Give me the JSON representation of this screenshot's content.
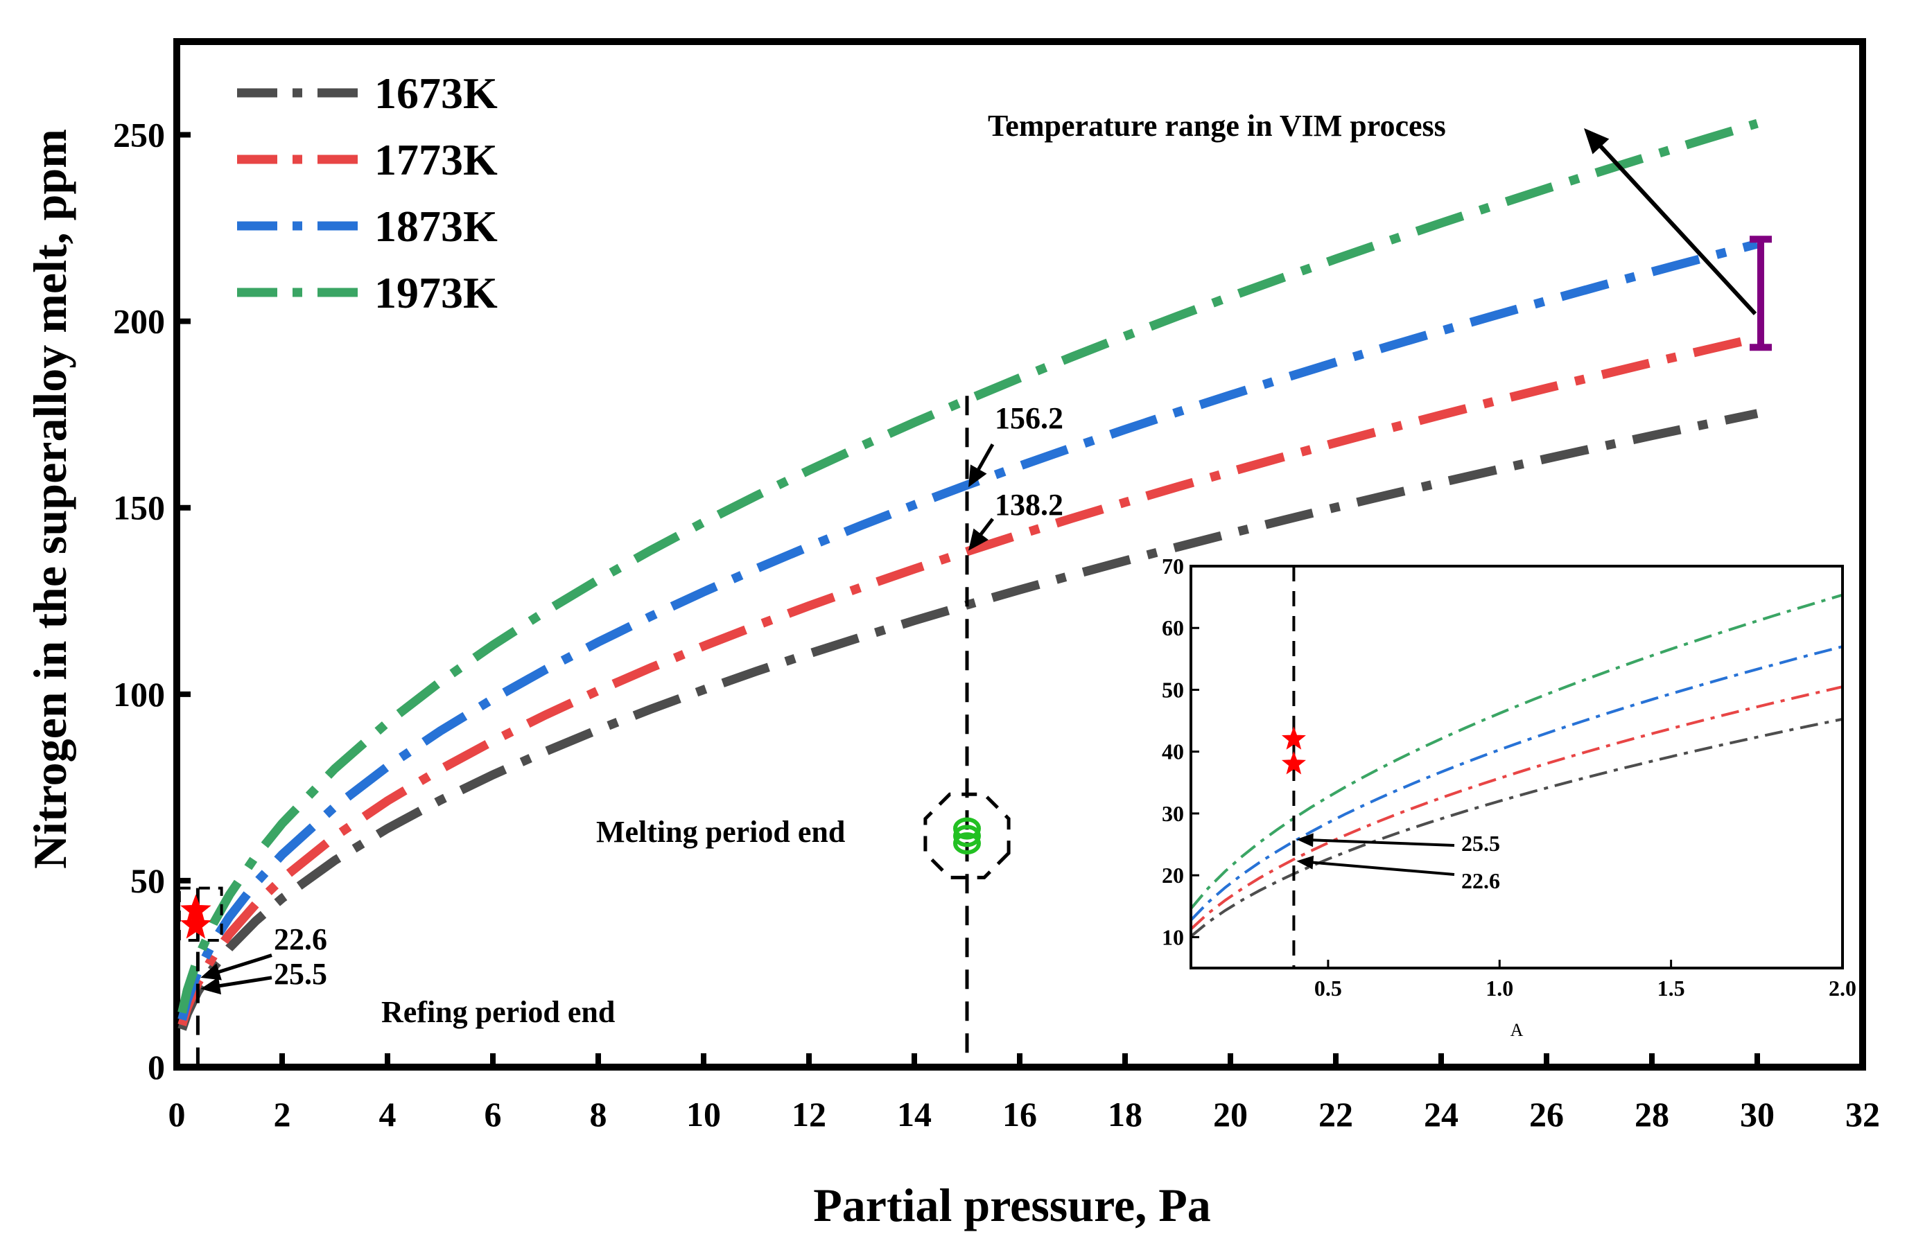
{
  "chart_data": {
    "type": "line",
    "xlabel": "Partial pressure, Pa",
    "ylabel": "Nitrogen in the superalloy melt, ppm",
    "xlim": [
      0,
      32
    ],
    "ylim": [
      0,
      275
    ],
    "x_ticks": [
      "0",
      "2",
      "4",
      "6",
      "8",
      "10",
      "12",
      "14",
      "16",
      "18",
      "20",
      "22",
      "24",
      "26",
      "28",
      "30",
      "32"
    ],
    "y_ticks": [
      "0",
      "50",
      "100",
      "150",
      "200",
      "250"
    ],
    "legend_position": "top-left",
    "series": [
      {
        "name": "1673K",
        "color": "#4d4d4d",
        "k": 32.0
      },
      {
        "name": "1773K",
        "color": "#e84545",
        "k": 35.7
      },
      {
        "name": "1873K",
        "color": "#2772d6",
        "k": 40.3
      },
      {
        "name": "1973K",
        "color": "#3aa564",
        "k": 46.2
      }
    ],
    "series_x": [
      0.1,
      0.2,
      0.4,
      0.7,
      1,
      1.5,
      2,
      3,
      4,
      5,
      6,
      7,
      8,
      9,
      10,
      11,
      12,
      13,
      14,
      15,
      16,
      17,
      18,
      19,
      20,
      21,
      22,
      23,
      24,
      25,
      26,
      27,
      28,
      29,
      30
    ],
    "reference_x": 15,
    "refining_x": 0.4,
    "annotations": {
      "vim_range": "Temperature range in VIM process",
      "melting_end": "Melting period end",
      "refining_end": "Refing period end",
      "val_1873_at_15": "156.2",
      "val_1773_at_15": "138.2",
      "val_1773_at_04": "22.6",
      "val_1873_at_04": "25.5"
    },
    "range_bar": {
      "x": 30,
      "y_low": 193,
      "y_high": 222,
      "color": "#800080"
    },
    "melting_points": [
      {
        "x": 15,
        "y": 60
      },
      {
        "x": 15,
        "y": 62
      },
      {
        "x": 15,
        "y": 64
      }
    ],
    "refining_stars": [
      {
        "x": 0.4,
        "y": 38
      },
      {
        "x": 0.4,
        "y": 42
      }
    ],
    "inset": {
      "xlabel": "A",
      "xlim": [
        0.1,
        2.0
      ],
      "ylim": [
        5,
        70
      ],
      "x_ticks": [
        "0.5",
        "1.0",
        "1.5",
        "2.0"
      ],
      "y_ticks": [
        "10",
        "20",
        "30",
        "40",
        "50",
        "60",
        "70"
      ],
      "stars": [
        {
          "x": 0.4,
          "y": 38
        },
        {
          "x": 0.4,
          "y": 42
        }
      ],
      "label_a": "25.5",
      "label_b": "22.6"
    }
  }
}
